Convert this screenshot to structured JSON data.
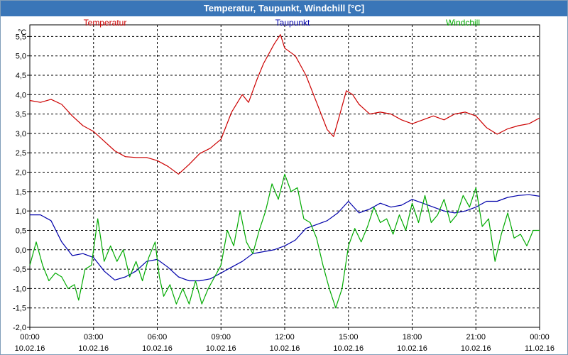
{
  "window": {
    "title": "Temperatur, Taupunkt, Windchill [°C]"
  },
  "chart_data": {
    "type": "line",
    "title": "Temperatur, Taupunkt, Windchill [°C]",
    "ylabel": "°C",
    "ylim": [
      -2.0,
      5.8
    ],
    "yticks": [
      -2.0,
      -1.5,
      -1.0,
      -0.5,
      0.0,
      0.5,
      1.0,
      1.5,
      2.0,
      2.5,
      3.0,
      3.5,
      4.0,
      4.5,
      5.0,
      5.5
    ],
    "ytick_labels": [
      "-2,0",
      "-1,5",
      "-1,0",
      "-0,5",
      "0,0",
      "0,5",
      "1,0",
      "1,5",
      "2,0",
      "2,5",
      "3,0",
      "3,5",
      "4,0",
      "4,5",
      "5,0",
      "5,5"
    ],
    "xlim": [
      0,
      24
    ],
    "xticks": [
      {
        "x": 0,
        "time": "00:00",
        "date": "10.02.16"
      },
      {
        "x": 3,
        "time": "03:00",
        "date": "10.02.16"
      },
      {
        "x": 6,
        "time": "06:00",
        "date": "10.02.16"
      },
      {
        "x": 9,
        "time": "09:00",
        "date": "10.02.16"
      },
      {
        "x": 12,
        "time": "12:00",
        "date": "10.02.16"
      },
      {
        "x": 15,
        "time": "15:00",
        "date": "10.02.16"
      },
      {
        "x": 18,
        "time": "18:00",
        "date": "10.02.16"
      },
      {
        "x": 21,
        "time": "21:00",
        "date": "10.02.16"
      },
      {
        "x": 24,
        "time": "00:00",
        "date": "11.02.16"
      }
    ],
    "grid": true,
    "series": [
      {
        "name": "Temperatur",
        "color": "#cc0000",
        "points": [
          [
            0,
            3.85
          ],
          [
            0.5,
            3.8
          ],
          [
            1,
            3.88
          ],
          [
            1.5,
            3.75
          ],
          [
            2,
            3.45
          ],
          [
            2.5,
            3.2
          ],
          [
            3,
            3.05
          ],
          [
            3.5,
            2.8
          ],
          [
            4,
            2.55
          ],
          [
            4.5,
            2.4
          ],
          [
            5,
            2.38
          ],
          [
            5.5,
            2.38
          ],
          [
            6,
            2.3
          ],
          [
            6.5,
            2.15
          ],
          [
            7,
            1.95
          ],
          [
            7.5,
            2.2
          ],
          [
            8,
            2.48
          ],
          [
            8.5,
            2.62
          ],
          [
            9,
            2.85
          ],
          [
            9.5,
            3.55
          ],
          [
            10,
            4.0
          ],
          [
            10.3,
            3.8
          ],
          [
            10.7,
            4.4
          ],
          [
            11,
            4.8
          ],
          [
            11.5,
            5.3
          ],
          [
            11.8,
            5.55
          ],
          [
            12,
            5.2
          ],
          [
            12.5,
            5.0
          ],
          [
            13,
            4.5
          ],
          [
            13.5,
            3.8
          ],
          [
            14,
            3.1
          ],
          [
            14.3,
            2.92
          ],
          [
            14.6,
            3.5
          ],
          [
            14.9,
            4.1
          ],
          [
            15.2,
            4.0
          ],
          [
            15.5,
            3.75
          ],
          [
            16,
            3.5
          ],
          [
            16.5,
            3.55
          ],
          [
            17,
            3.5
          ],
          [
            17.5,
            3.35
          ],
          [
            18,
            3.25
          ],
          [
            18.5,
            3.35
          ],
          [
            19,
            3.45
          ],
          [
            19.5,
            3.35
          ],
          [
            20,
            3.5
          ],
          [
            20.5,
            3.55
          ],
          [
            21,
            3.45
          ],
          [
            21.5,
            3.15
          ],
          [
            22,
            2.98
          ],
          [
            22.5,
            3.12
          ],
          [
            23,
            3.2
          ],
          [
            23.5,
            3.25
          ],
          [
            24,
            3.4
          ]
        ]
      },
      {
        "name": "Taupunkt",
        "color": "#0000aa",
        "points": [
          [
            0,
            0.9
          ],
          [
            0.5,
            0.9
          ],
          [
            1,
            0.75
          ],
          [
            1.5,
            0.2
          ],
          [
            2,
            -0.15
          ],
          [
            2.5,
            -0.1
          ],
          [
            3,
            -0.2
          ],
          [
            3.5,
            -0.55
          ],
          [
            4,
            -0.78
          ],
          [
            4.5,
            -0.7
          ],
          [
            5,
            -0.55
          ],
          [
            5.5,
            -0.3
          ],
          [
            6,
            -0.25
          ],
          [
            6.5,
            -0.45
          ],
          [
            7,
            -0.7
          ],
          [
            7.5,
            -0.8
          ],
          [
            8,
            -0.8
          ],
          [
            8.5,
            -0.75
          ],
          [
            9,
            -0.6
          ],
          [
            9.5,
            -0.45
          ],
          [
            10,
            -0.3
          ],
          [
            10.5,
            -0.1
          ],
          [
            11,
            -0.05
          ],
          [
            11.5,
            0.0
          ],
          [
            12,
            0.1
          ],
          [
            12.5,
            0.25
          ],
          [
            13,
            0.55
          ],
          [
            13.5,
            0.65
          ],
          [
            14,
            0.75
          ],
          [
            14.5,
            0.95
          ],
          [
            15,
            1.25
          ],
          [
            15.5,
            0.95
          ],
          [
            16,
            1.05
          ],
          [
            16.5,
            1.2
          ],
          [
            17,
            1.1
          ],
          [
            17.5,
            1.15
          ],
          [
            18,
            1.3
          ],
          [
            18.5,
            1.2
          ],
          [
            19,
            1.1
          ],
          [
            19.5,
            1.0
          ],
          [
            20,
            0.95
          ],
          [
            20.5,
            1.0
          ],
          [
            21,
            1.1
          ],
          [
            21.5,
            1.25
          ],
          [
            22,
            1.25
          ],
          [
            22.5,
            1.35
          ],
          [
            23,
            1.4
          ],
          [
            23.5,
            1.42
          ],
          [
            24,
            1.38
          ]
        ]
      },
      {
        "name": "Windchill",
        "color": "#00aa00",
        "points": [
          [
            0,
            -0.4
          ],
          [
            0.3,
            0.2
          ],
          [
            0.6,
            -0.4
          ],
          [
            0.9,
            -0.8
          ],
          [
            1.2,
            -0.6
          ],
          [
            1.5,
            -0.7
          ],
          [
            1.8,
            -1.0
          ],
          [
            2.1,
            -0.9
          ],
          [
            2.3,
            -1.3
          ],
          [
            2.6,
            -0.5
          ],
          [
            2.9,
            -0.4
          ],
          [
            3.2,
            0.8
          ],
          [
            3.5,
            -0.3
          ],
          [
            3.8,
            0.1
          ],
          [
            4.1,
            -0.3
          ],
          [
            4.4,
            0.0
          ],
          [
            4.7,
            -0.7
          ],
          [
            5.0,
            -0.3
          ],
          [
            5.3,
            -0.8
          ],
          [
            5.6,
            -0.2
          ],
          [
            5.9,
            0.2
          ],
          [
            6.1,
            -0.7
          ],
          [
            6.3,
            -1.2
          ],
          [
            6.6,
            -0.9
          ],
          [
            6.9,
            -1.4
          ],
          [
            7.2,
            -1.0
          ],
          [
            7.5,
            -1.4
          ],
          [
            7.8,
            -0.8
          ],
          [
            8.1,
            -1.4
          ],
          [
            8.4,
            -1.0
          ],
          [
            8.7,
            -0.7
          ],
          [
            9.0,
            -0.4
          ],
          [
            9.3,
            0.5
          ],
          [
            9.6,
            0.1
          ],
          [
            9.9,
            1.0
          ],
          [
            10.2,
            0.2
          ],
          [
            10.5,
            -0.1
          ],
          [
            10.8,
            0.5
          ],
          [
            11.1,
            1.0
          ],
          [
            11.4,
            1.7
          ],
          [
            11.7,
            1.3
          ],
          [
            12.0,
            1.95
          ],
          [
            12.3,
            1.5
          ],
          [
            12.6,
            1.6
          ],
          [
            12.9,
            0.8
          ],
          [
            13.2,
            0.7
          ],
          [
            13.5,
            0.3
          ],
          [
            13.8,
            -0.4
          ],
          [
            14.1,
            -1.0
          ],
          [
            14.4,
            -1.5
          ],
          [
            14.7,
            -1.0
          ],
          [
            15.0,
            0.1
          ],
          [
            15.3,
            0.55
          ],
          [
            15.6,
            0.2
          ],
          [
            15.9,
            0.6
          ],
          [
            16.2,
            1.1
          ],
          [
            16.5,
            0.7
          ],
          [
            16.8,
            0.8
          ],
          [
            17.1,
            0.4
          ],
          [
            17.4,
            0.9
          ],
          [
            17.7,
            0.5
          ],
          [
            18.0,
            1.2
          ],
          [
            18.3,
            0.7
          ],
          [
            18.6,
            1.4
          ],
          [
            18.9,
            0.7
          ],
          [
            19.2,
            0.9
          ],
          [
            19.5,
            1.3
          ],
          [
            19.8,
            0.7
          ],
          [
            20.1,
            0.9
          ],
          [
            20.4,
            1.4
          ],
          [
            20.7,
            1.1
          ],
          [
            21.0,
            1.6
          ],
          [
            21.3,
            0.6
          ],
          [
            21.6,
            0.8
          ],
          [
            21.9,
            -0.3
          ],
          [
            22.2,
            0.4
          ],
          [
            22.5,
            0.95
          ],
          [
            22.8,
            0.3
          ],
          [
            23.1,
            0.4
          ],
          [
            23.4,
            0.1
          ],
          [
            23.7,
            0.5
          ],
          [
            24.0,
            0.5
          ]
        ]
      }
    ]
  }
}
